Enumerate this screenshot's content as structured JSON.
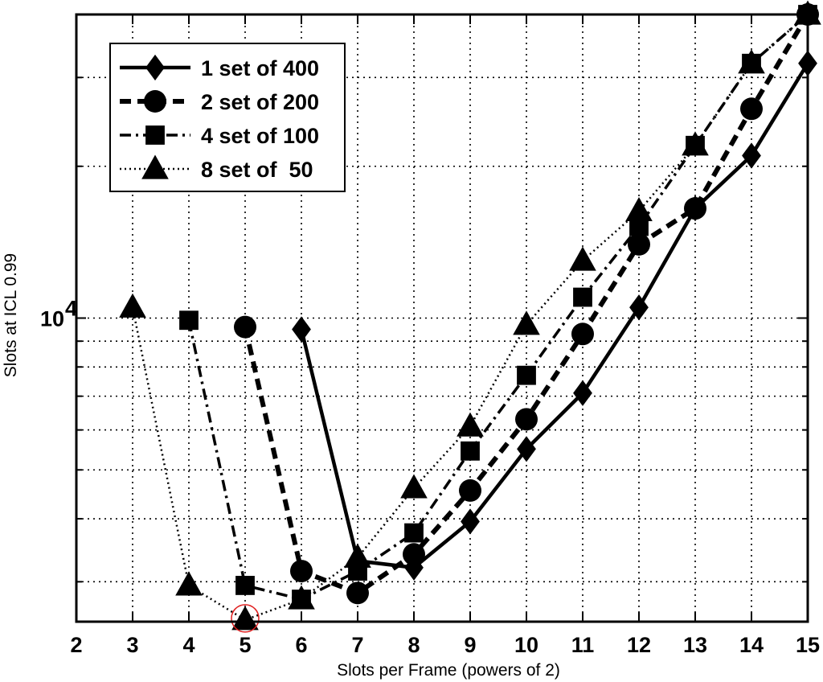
{
  "chart_data": {
    "type": "line",
    "title": "",
    "xlabel": "Slots per Frame (powers of 2)",
    "ylabel": "Slots at ICL 0.99",
    "xlim": [
      2,
      15
    ],
    "ylim": [
      2500,
      40000
    ],
    "yscale": "log",
    "y_tick_label": "10",
    "y_tick_label_exp": "4",
    "x_ticks": [
      "2",
      "3",
      "4",
      "5",
      "6",
      "7",
      "8",
      "9",
      "10",
      "11",
      "12",
      "13",
      "14",
      "15"
    ],
    "grid": true,
    "legend_position": "top-left",
    "highlight": {
      "series": "8 set of  50",
      "x": 5,
      "y": 2520,
      "color": "#e02020"
    },
    "series": [
      {
        "name": "1 set of 400",
        "marker": "diamond",
        "dash": "solid",
        "x": [
          6,
          7,
          8,
          9,
          10,
          11,
          12,
          13,
          14,
          15
        ],
        "y": [
          9500,
          3300,
          3200,
          3950,
          5500,
          7100,
          10500,
          16500,
          21000,
          32000
        ]
      },
      {
        "name": "2 set of 200",
        "marker": "circle",
        "dash": "dashed",
        "x": [
          5,
          6,
          7,
          8,
          9,
          10,
          11,
          12,
          13,
          14,
          15
        ],
        "y": [
          9600,
          3150,
          2850,
          3400,
          4550,
          6300,
          9300,
          14000,
          16500,
          26000,
          40000
        ]
      },
      {
        "name": "4 set of 100",
        "marker": "square",
        "dash": "dashdot",
        "x": [
          4,
          5,
          6,
          7,
          8,
          9,
          10,
          11,
          12,
          13,
          14,
          15
        ],
        "y": [
          9900,
          2950,
          2770,
          3150,
          3750,
          5450,
          7700,
          11000,
          15200,
          22000,
          32000,
          40000
        ]
      },
      {
        "name": "8 set of  50",
        "marker": "triangle",
        "dash": "dotted",
        "x": [
          3,
          4,
          5,
          6,
          7,
          8,
          9,
          10,
          11,
          12,
          13,
          14,
          15
        ],
        "y": [
          10500,
          2950,
          2520,
          2770,
          3350,
          4600,
          6100,
          9700,
          13000,
          16300,
          22000,
          32000,
          40000
        ]
      }
    ]
  }
}
